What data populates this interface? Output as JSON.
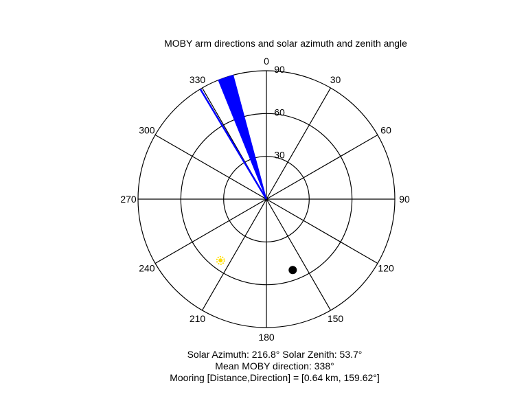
{
  "chart_data": {
    "type": "polar",
    "title": "MOBY arm directions and solar azimuth and zenith angle",
    "angle_ticks": [
      "0",
      "30",
      "60",
      "90",
      "120",
      "150",
      "180",
      "210",
      "240",
      "270",
      "300",
      "330"
    ],
    "radial_ticks": [
      "30",
      "60",
      "90"
    ],
    "radial_max": 90,
    "direction": "clockwise",
    "zero_location": "top",
    "colors": {
      "arm": "#0000ff",
      "sun": "#ffdd00",
      "mooring": "#000000",
      "grid": "#000000"
    },
    "series": [
      {
        "kind": "arm_wedge",
        "azimuth_from": 338,
        "azimuth_to": 345,
        "zenith": 90
      },
      {
        "kind": "arm_line",
        "azimuth": 329,
        "zenith": 90
      },
      {
        "kind": "solar_position",
        "azimuth": 216.8,
        "zenith": 53.7
      },
      {
        "kind": "mooring",
        "azimuth": 159.62,
        "zenith": 53
      }
    ]
  },
  "captions": {
    "line1": "Solar Azimuth: 216.8°   Solar Zenith: 53.7°",
    "line2": "Mean MOBY direction: 338°",
    "line3": "Mooring [Distance,Direction] = [0.64 km, 159.62°]"
  }
}
